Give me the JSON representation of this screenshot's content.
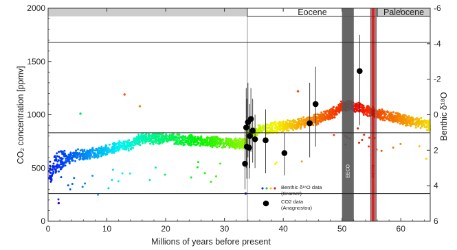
{
  "chart_data": {
    "type": "scatter",
    "xlabel": "Millions of years before present",
    "ylabel": "CO₂ concentration [ppmv]",
    "y2label": "Benthic δ¹⁸O",
    "xlim": [
      0,
      65
    ],
    "ylim": [
      0,
      2000
    ],
    "y2lim": [
      6,
      -6
    ],
    "x_ticks": [
      0,
      10,
      20,
      30,
      40,
      50,
      60
    ],
    "y_ticks": [
      0,
      500,
      1000,
      1500,
      2000
    ],
    "y2_ticks": [
      6,
      4,
      2,
      0,
      -2,
      -4,
      -6
    ],
    "eras": [
      {
        "label": "Eocene",
        "from": 33.9,
        "to": 56
      },
      {
        "label": "Paleocene",
        "from": 56,
        "to": 65
      }
    ],
    "event_bands": [
      {
        "label": "EECO",
        "from": 50,
        "to": 52,
        "color": "#555555"
      },
      {
        "label": "PETM",
        "from": 55,
        "to": 55.6,
        "color": "#cc0000"
      }
    ],
    "horizontal_lines_ppmv": [
      1680,
      830,
      260
    ],
    "legend": {
      "entries": [
        "Benthic δ¹⁸O data (Cramer)",
        "CO2 data (Anagnostou)"
      ],
      "placement": "inside lower-middle"
    },
    "series": [
      {
        "name": "CO2 data (Anagnostou)",
        "points": [
          {
            "x": 33.5,
            "y": 540,
            "lo": 300,
            "hi": 900
          },
          {
            "x": 33.8,
            "y": 700,
            "lo": 400,
            "hi": 1150
          },
          {
            "x": 33.7,
            "y": 880,
            "lo": 500,
            "hi": 1250
          },
          {
            "x": 34.0,
            "y": 930,
            "lo": 600,
            "hi": 1300
          },
          {
            "x": 34.2,
            "y": 690,
            "lo": 400,
            "hi": 950
          },
          {
            "x": 34.5,
            "y": 960,
            "lo": 650,
            "hi": 1250
          },
          {
            "x": 34.8,
            "y": 850,
            "lo": 550,
            "hi": 1150
          },
          {
            "x": 34.3,
            "y": 800,
            "lo": 500,
            "hi": 1100
          },
          {
            "x": 35.2,
            "y": 770,
            "lo": 500,
            "hi": 1000
          },
          {
            "x": 37.0,
            "y": 760,
            "lo": 450,
            "hi": 1050
          },
          {
            "x": 40.2,
            "y": 640,
            "lo": 430,
            "hi": 830
          },
          {
            "x": 44.5,
            "y": 920,
            "lo": 600,
            "hi": 1300
          },
          {
            "x": 45.5,
            "y": 1100,
            "lo": 700,
            "hi": 1450
          },
          {
            "x": 53.0,
            "y": 1410,
            "lo": 900,
            "hi": 1750
          }
        ]
      }
    ],
    "benthic_trend_ppmv_scale": [
      [
        0,
        500
      ],
      [
        0.5,
        430
      ],
      [
        1,
        520
      ],
      [
        2,
        560
      ],
      [
        3,
        580
      ],
      [
        5,
        620
      ],
      [
        8,
        640
      ],
      [
        12,
        700
      ],
      [
        14,
        720
      ],
      [
        16,
        780
      ],
      [
        20,
        770
      ],
      [
        25,
        760
      ],
      [
        30,
        740
      ],
      [
        33.5,
        720
      ],
      [
        34,
        820
      ],
      [
        36,
        860
      ],
      [
        40,
        890
      ],
      [
        44,
        930
      ],
      [
        48,
        1000
      ],
      [
        50,
        1080
      ],
      [
        52,
        1080
      ],
      [
        54,
        1040
      ],
      [
        56,
        1010
      ],
      [
        60,
        960
      ],
      [
        65,
        900
      ]
    ]
  }
}
